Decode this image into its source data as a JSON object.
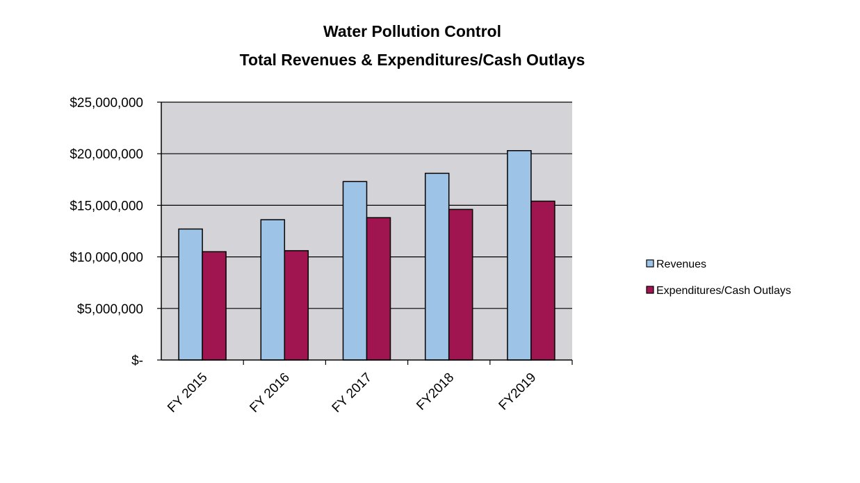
{
  "chart_data": {
    "type": "bar",
    "title": [
      "Water Pollution Control",
      "Total Revenues & Expenditures/Cash Outlays"
    ],
    "xlabel": "",
    "ylabel": "",
    "categories": [
      "FY 2015",
      "FY 2016",
      "FY 2017",
      "FY2018",
      "FY2019"
    ],
    "series": [
      {
        "name": "Revenues",
        "color": "#9dc3e6",
        "values": [
          12700000,
          13600000,
          17300000,
          18100000,
          20300000
        ]
      },
      {
        "name": "Expenditures/Cash Outlays",
        "color": "#a0144f",
        "values": [
          10500000,
          10600000,
          13800000,
          14600000,
          15400000
        ]
      }
    ],
    "ylim": [
      0,
      25000000
    ],
    "yticks": [
      0,
      5000000,
      10000000,
      15000000,
      20000000,
      25000000
    ],
    "ytick_labels": [
      "$-",
      "$5,000,000",
      "$10,000,000",
      "$15,000,000",
      "$20,000,000",
      "$25,000,000"
    ],
    "grid": true,
    "plot_background": "#d4d4d8",
    "legend": "right"
  }
}
